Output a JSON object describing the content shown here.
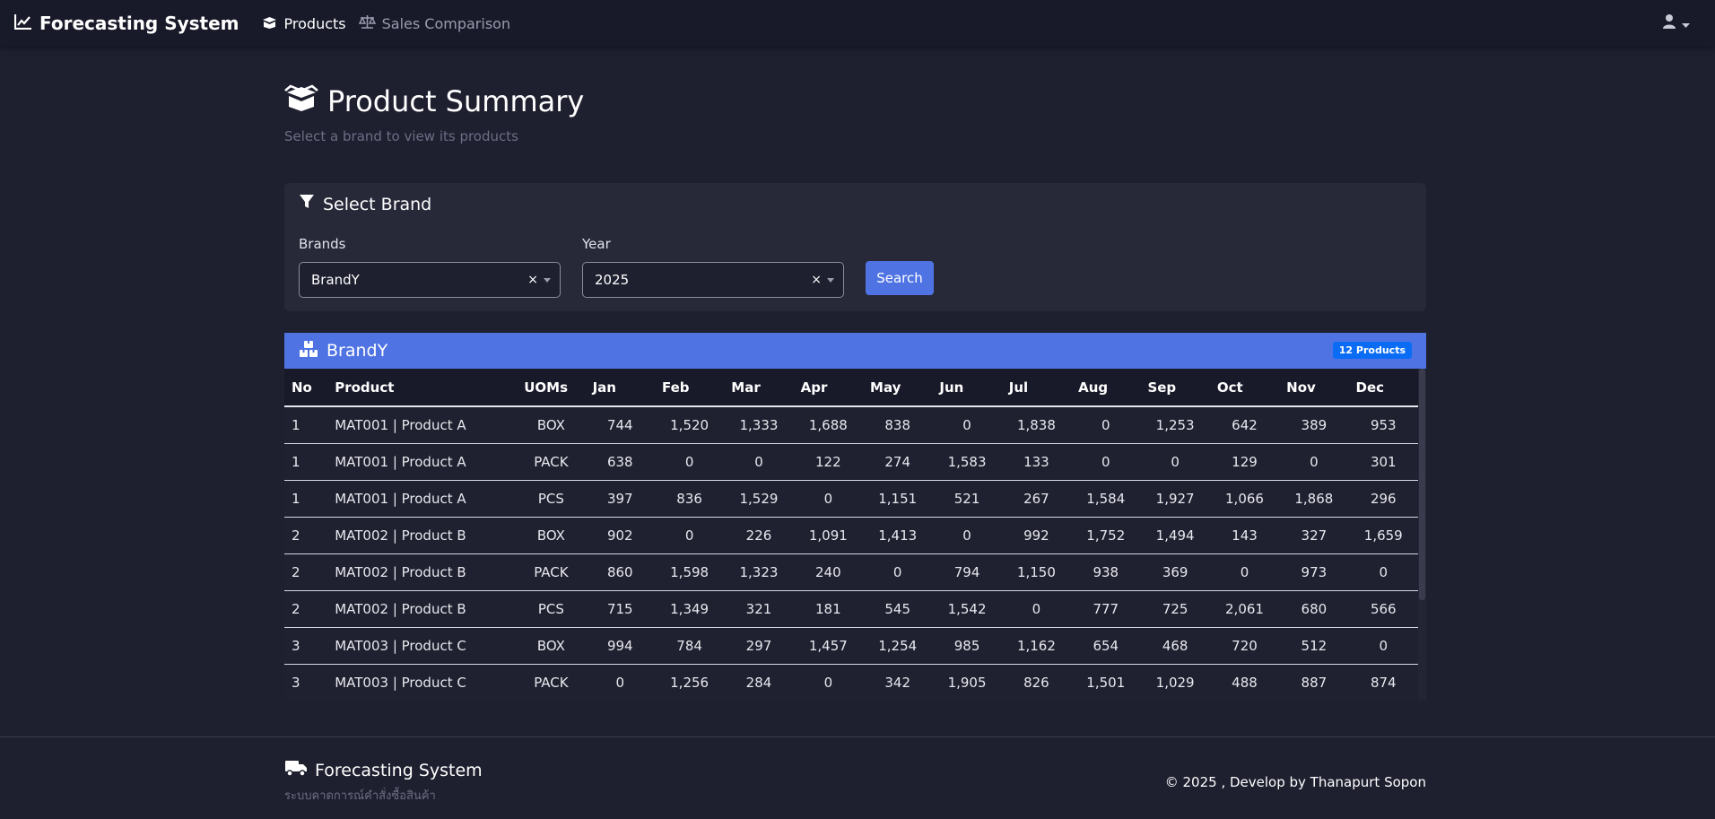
{
  "nav": {
    "brand": "Forecasting System",
    "links": [
      {
        "label": "Products",
        "icon": "box-open-icon",
        "active": true
      },
      {
        "label": "Sales Comparison",
        "icon": "balance-scale-icon",
        "active": false
      }
    ],
    "user_icon": "user-icon"
  },
  "page": {
    "title": "Product Summary",
    "subtitle": "Select a brand to view its products"
  },
  "filter": {
    "header": "Select Brand",
    "brand_label": "Brands",
    "brand_value": "BrandY",
    "year_label": "Year",
    "year_value": "2025",
    "search_label": "Search"
  },
  "table": {
    "title": "BrandY",
    "count_badge": "12 Products",
    "columns": [
      "No",
      "Product",
      "UOMs",
      "Jan",
      "Feb",
      "Mar",
      "Apr",
      "May",
      "Jun",
      "Jul",
      "Aug",
      "Sep",
      "Oct",
      "Nov",
      "Dec"
    ],
    "rows": [
      [
        "1",
        "MAT001 | Product A",
        "BOX",
        "744",
        "1,520",
        "1,333",
        "1,688",
        "838",
        "0",
        "1,838",
        "0",
        "1,253",
        "642",
        "389",
        "953"
      ],
      [
        "1",
        "MAT001 | Product A",
        "PACK",
        "638",
        "0",
        "0",
        "122",
        "274",
        "1,583",
        "133",
        "0",
        "0",
        "129",
        "0",
        "301"
      ],
      [
        "1",
        "MAT001 | Product A",
        "PCS",
        "397",
        "836",
        "1,529",
        "0",
        "1,151",
        "521",
        "267",
        "1,584",
        "1,927",
        "1,066",
        "1,868",
        "296"
      ],
      [
        "2",
        "MAT002 | Product B",
        "BOX",
        "902",
        "0",
        "226",
        "1,091",
        "1,413",
        "0",
        "992",
        "1,752",
        "1,494",
        "143",
        "327",
        "1,659"
      ],
      [
        "2",
        "MAT002 | Product B",
        "PACK",
        "860",
        "1,598",
        "1,323",
        "240",
        "0",
        "794",
        "1,150",
        "938",
        "369",
        "0",
        "973",
        "0"
      ],
      [
        "2",
        "MAT002 | Product B",
        "PCS",
        "715",
        "1,349",
        "321",
        "181",
        "545",
        "1,542",
        "0",
        "777",
        "725",
        "2,061",
        "680",
        "566"
      ],
      [
        "3",
        "MAT003 | Product C",
        "BOX",
        "994",
        "784",
        "297",
        "1,457",
        "1,254",
        "985",
        "1,162",
        "654",
        "468",
        "720",
        "512",
        "0"
      ],
      [
        "3",
        "MAT003 | Product C",
        "PACK",
        "0",
        "1,256",
        "284",
        "0",
        "342",
        "1,905",
        "826",
        "1,501",
        "1,029",
        "488",
        "887",
        "874"
      ]
    ]
  },
  "footer": {
    "title": "Forecasting System",
    "subtitle": "ระบบคาดการณ์คำสั่งซื้อสินค้า",
    "copyright": "© 2025 , Develop by Thanapurt Sopon"
  },
  "colors": {
    "background": "#1e1f2f",
    "navbar": "#181929",
    "card": "#272939",
    "accent": "#4f73e3",
    "badge": "#0a6cf5"
  }
}
